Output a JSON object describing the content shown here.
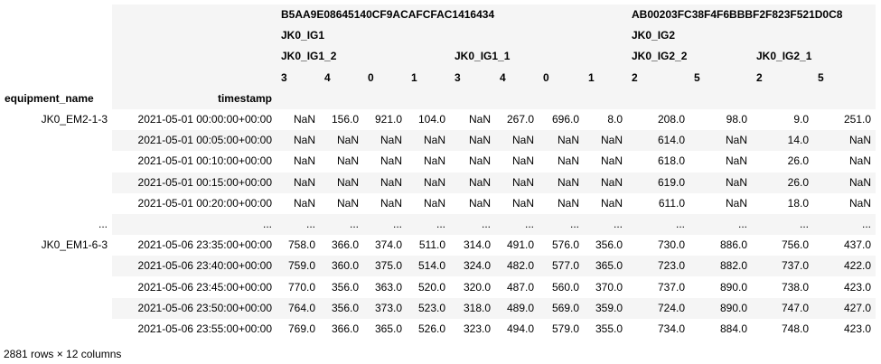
{
  "header": {
    "level0": [
      "B5AA9E08645140CF9ACAFCFAC1416434",
      "AB00203FC38F4F6BBBF2F823F521D0C8"
    ],
    "level1": [
      "JK0_IG1",
      "JK0_IG2"
    ],
    "level2": [
      "JK0_IG1_2",
      "JK0_IG1_1",
      "JK0_IG2_2",
      "JK0_IG2_1"
    ],
    "level3": [
      "3",
      "4",
      "0",
      "1",
      "3",
      "4",
      "0",
      "1",
      "2",
      "5",
      "2",
      "5"
    ],
    "index_names": [
      "equipment_name",
      "timestamp"
    ]
  },
  "rows": [
    {
      "equipment": "JK0_EM2-1-3",
      "timestamp": "2021-05-01 00:00:00+00:00",
      "values": [
        "NaN",
        "156.0",
        "921.0",
        "104.0",
        "NaN",
        "267.0",
        "696.0",
        "8.0",
        "208.0",
        "98.0",
        "9.0",
        "251.0"
      ]
    },
    {
      "equipment": "",
      "timestamp": "2021-05-01 00:05:00+00:00",
      "values": [
        "NaN",
        "NaN",
        "NaN",
        "NaN",
        "NaN",
        "NaN",
        "NaN",
        "NaN",
        "614.0",
        "NaN",
        "14.0",
        "NaN"
      ]
    },
    {
      "equipment": "",
      "timestamp": "2021-05-01 00:10:00+00:00",
      "values": [
        "NaN",
        "NaN",
        "NaN",
        "NaN",
        "NaN",
        "NaN",
        "NaN",
        "NaN",
        "618.0",
        "NaN",
        "26.0",
        "NaN"
      ]
    },
    {
      "equipment": "",
      "timestamp": "2021-05-01 00:15:00+00:00",
      "values": [
        "NaN",
        "NaN",
        "NaN",
        "NaN",
        "NaN",
        "NaN",
        "NaN",
        "NaN",
        "619.0",
        "NaN",
        "26.0",
        "NaN"
      ]
    },
    {
      "equipment": "",
      "timestamp": "2021-05-01 00:20:00+00:00",
      "values": [
        "NaN",
        "NaN",
        "NaN",
        "NaN",
        "NaN",
        "NaN",
        "NaN",
        "NaN",
        "611.0",
        "NaN",
        "18.0",
        "NaN"
      ]
    },
    {
      "equipment": "...",
      "timestamp": "...",
      "values": [
        "...",
        "...",
        "...",
        "...",
        "...",
        "...",
        "...",
        "...",
        "...",
        "...",
        "...",
        "..."
      ]
    },
    {
      "equipment": "JK0_EM1-6-3",
      "timestamp": "2021-05-06 23:35:00+00:00",
      "values": [
        "758.0",
        "366.0",
        "374.0",
        "511.0",
        "314.0",
        "491.0",
        "576.0",
        "356.0",
        "730.0",
        "886.0",
        "756.0",
        "437.0"
      ]
    },
    {
      "equipment": "",
      "timestamp": "2021-05-06 23:40:00+00:00",
      "values": [
        "759.0",
        "360.0",
        "375.0",
        "514.0",
        "324.0",
        "482.0",
        "577.0",
        "365.0",
        "723.0",
        "882.0",
        "737.0",
        "422.0"
      ]
    },
    {
      "equipment": "",
      "timestamp": "2021-05-06 23:45:00+00:00",
      "values": [
        "770.0",
        "356.0",
        "363.0",
        "520.0",
        "320.0",
        "487.0",
        "560.0",
        "370.0",
        "737.0",
        "890.0",
        "738.0",
        "423.0"
      ]
    },
    {
      "equipment": "",
      "timestamp": "2021-05-06 23:50:00+00:00",
      "values": [
        "764.0",
        "356.0",
        "373.0",
        "523.0",
        "318.0",
        "489.0",
        "569.0",
        "359.0",
        "724.0",
        "890.0",
        "747.0",
        "427.0"
      ]
    },
    {
      "equipment": "",
      "timestamp": "2021-05-06 23:55:00+00:00",
      "values": [
        "769.0",
        "366.0",
        "365.0",
        "526.0",
        "323.0",
        "494.0",
        "579.0",
        "355.0",
        "734.0",
        "884.0",
        "748.0",
        "423.0"
      ]
    }
  ],
  "footer": "2881 rows × 12 columns"
}
